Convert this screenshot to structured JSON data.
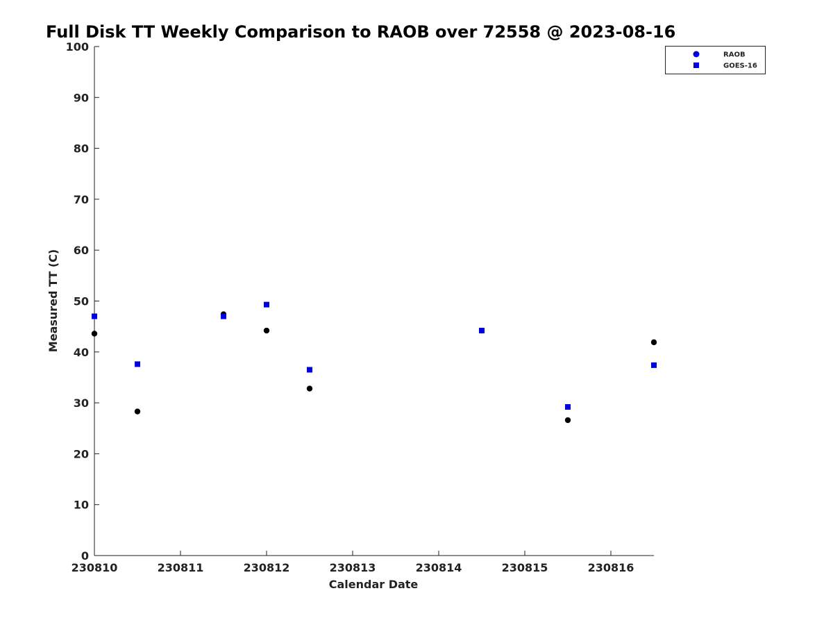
{
  "chart_data": {
    "type": "scatter",
    "title": "Full Disk TT Weekly Comparison to RAOB over 72558 @ 2023-08-16",
    "xlabel": "Calendar Date",
    "ylabel": "Measured TT (C)",
    "xlim": [
      0,
      6.5
    ],
    "ylim": [
      0,
      100
    ],
    "x_ticks": [
      {
        "value": 0,
        "label": "230810"
      },
      {
        "value": 1,
        "label": "230811"
      },
      {
        "value": 2,
        "label": "230812"
      },
      {
        "value": 3,
        "label": "230813"
      },
      {
        "value": 4,
        "label": "230814"
      },
      {
        "value": 5,
        "label": "230815"
      },
      {
        "value": 6,
        "label": "230816"
      }
    ],
    "y_ticks": [
      0,
      10,
      20,
      30,
      40,
      50,
      60,
      70,
      80,
      90,
      100
    ],
    "grid": false,
    "legend_position": "top-right",
    "series": [
      {
        "name": "RAOB",
        "marker": "circle",
        "legend_color": "#0000dd",
        "point_color": "#000000",
        "x": [
          0,
          0.5,
          1.5,
          2,
          2.5,
          4.5,
          5.5,
          6.5
        ],
        "y": [
          43.6,
          28.3,
          47.4,
          44.2,
          32.8,
          44.2,
          26.6,
          41.9
        ]
      },
      {
        "name": "GOES-16",
        "marker": "square",
        "legend_color": "#0000dd",
        "point_color": "#0000dd",
        "x": [
          0,
          0.5,
          1.5,
          2,
          2.5,
          4.5,
          5.5,
          6.5
        ],
        "y": [
          47.0,
          37.6,
          47.0,
          49.3,
          36.5,
          44.2,
          29.2,
          37.4
        ]
      }
    ]
  }
}
